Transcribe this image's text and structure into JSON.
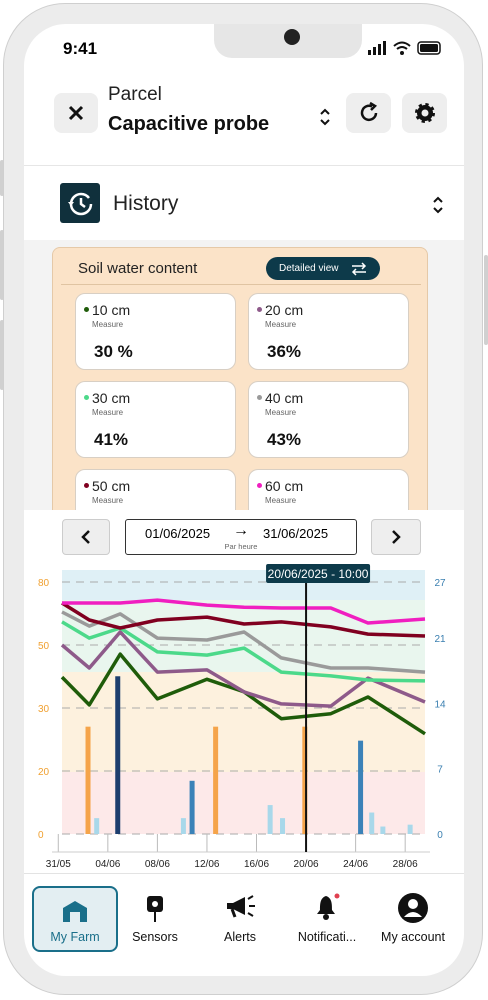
{
  "status_bar": {
    "time": "9:41"
  },
  "header": {
    "subtitle": "Parcel",
    "title": "Capacitive probe"
  },
  "section": {
    "title": "History"
  },
  "card": {
    "title": "Soil water content",
    "button": "Detailed view",
    "measures": [
      {
        "depth": "10 cm",
        "label": "Measure",
        "value": "30 %"
      },
      {
        "depth": "20 cm",
        "label": "Measure",
        "value": "36%"
      },
      {
        "depth": "30 cm",
        "label": "Measure",
        "value": "41%"
      },
      {
        "depth": "40 cm",
        "label": "Measure",
        "value": "43%"
      },
      {
        "depth": "50 cm",
        "label": "Measure"
      },
      {
        "depth": "60 cm",
        "label": "Measure"
      }
    ]
  },
  "date_range": {
    "start": "01/06/2025",
    "end": "31/06/2025",
    "granularity": "Par heure"
  },
  "chart_data": {
    "type": "line",
    "x": [
      0.3,
      2.5,
      5,
      8,
      12,
      15,
      18,
      22,
      25,
      29.6
    ],
    "series": [
      {
        "color": "#1f5c0a",
        "values": [
          39.8,
          31,
          47.1,
          32.9,
          39.1,
          35.1,
          28.3,
          29.1,
          33.5,
          25.9
        ]
      },
      {
        "color": "#8e5a8a",
        "values": [
          50,
          42.7,
          56.2,
          41.4,
          42.1,
          35.1,
          31.3,
          30.6,
          39.5,
          31.9
        ]
      },
      {
        "color": "#4cd98a",
        "values": [
          61,
          53.3,
          58.1,
          47.8,
          46.8,
          49,
          41.4,
          40.2,
          38.9,
          38.6
        ]
      },
      {
        "color": "#9a9a9a",
        "values": [
          65.7,
          59,
          64.8,
          53.3,
          52.4,
          56.2,
          45.9,
          42.7,
          42.7,
          41.4
        ]
      },
      {
        "color": "#800020",
        "values": [
          70,
          61.9,
          58.1,
          61.9,
          63.3,
          60,
          61,
          58.6,
          55.2,
          54.3
        ]
      },
      {
        "color": "#f01fc0",
        "values": [
          70,
          70,
          70,
          71.4,
          69,
          68,
          67.6,
          67.6,
          60.5,
          62.4
        ]
      },
      {
        "type": "bar",
        "axis": "y2",
        "color": "#f5a44a",
        "x": [
          2.4,
          12.7,
          19.9
        ],
        "values": [
          11.5,
          11.5,
          11.5
        ]
      },
      {
        "type": "bar",
        "axis": "y2",
        "color": "#1d3e6e",
        "x": [
          4.8
        ],
        "values": [
          16.9
        ]
      },
      {
        "type": "bar",
        "axis": "y2",
        "color": "#3b82b8",
        "x": [
          10.8,
          24.4
        ],
        "values": [
          5.7,
          10
        ]
      },
      {
        "type": "bar",
        "axis": "y2",
        "color": "#a8d8ea",
        "x": [
          3.1,
          10.1,
          17.1,
          18.1,
          25.3,
          26.2,
          28.4
        ],
        "values": [
          1.7,
          1.7,
          3.1,
          1.7,
          2.3,
          0.8,
          1
        ]
      }
    ],
    "xlim": [
      0.3,
      29.6
    ],
    "xticks": [
      {
        "value": 0,
        "label": "31/05"
      },
      {
        "value": 4,
        "label": "04/06"
      },
      {
        "value": 8,
        "label": "08/06"
      },
      {
        "value": 12,
        "label": "12/06"
      },
      {
        "value": 16,
        "label": "16/06"
      },
      {
        "value": 20,
        "label": "20/06"
      },
      {
        "value": 24,
        "label": "24/06"
      },
      {
        "value": 28,
        "label": "28/06"
      }
    ],
    "ylim": [
      0,
      80
    ],
    "yticks": [
      0,
      20,
      30,
      50,
      80
    ],
    "y2lim": [
      0,
      27
    ],
    "y2ticks": [
      0,
      7,
      14,
      21,
      27
    ],
    "grid": true,
    "cursor": {
      "x": 20,
      "label": "20/06/2025 - 10:00"
    }
  },
  "nav": {
    "items": [
      {
        "label": "My Farm",
        "active": true
      },
      {
        "label": "Sensors"
      },
      {
        "label": "Alerts"
      },
      {
        "label": "Notificati..."
      },
      {
        "label": "My account"
      }
    ]
  }
}
